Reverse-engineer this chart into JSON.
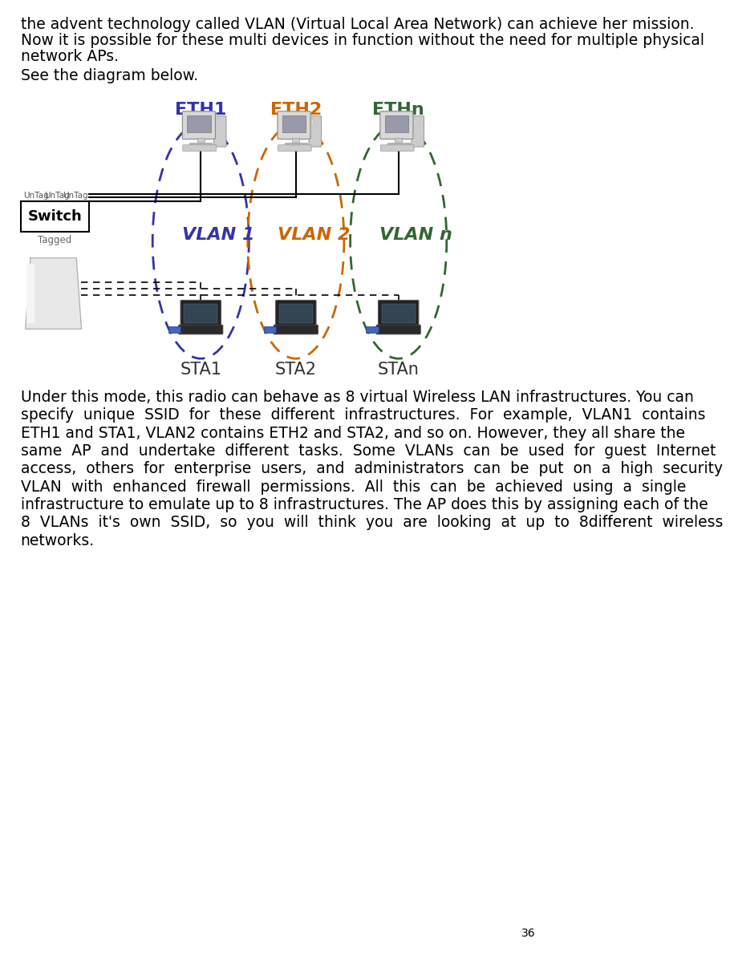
{
  "page_number": "36",
  "text_line1": "the advent technology called VLAN (Virtual Local Area Network) can achieve her mission.",
  "text_line2": "Now it is possible for these multi devices in function without the need for multiple physical",
  "text_line3": "network APs.",
  "text_line4": "See the diagram below.",
  "vlan1_color": "#3333AA",
  "vlan2_color": "#CC6600",
  "vlann_color": "#336633",
  "switch_label": "Switch",
  "tagged_label": "Tagged",
  "untag_labels": [
    "UnTag",
    "UnTag",
    "UnTag"
  ],
  "eth_labels": [
    "ETH1",
    "ETH2",
    "ETHn"
  ],
  "sta_labels": [
    "STA1",
    "STA2",
    "STAn"
  ],
  "vlan_labels": [
    "VLAN 1",
    "VLAN 2",
    "VLAN n"
  ],
  "background_color": "#ffffff",
  "text_color": "#000000",
  "font_size_body": 13.5,
  "font_size_diagram_label": 15,
  "font_size_vlan": 16,
  "para_lines": [
    "Under this mode, this radio can behave as 8 virtual Wireless LAN infrastructures. You can",
    "specify  unique  SSID  for  these  different  infrastructures.  For  example,  VLAN1  contains",
    "ETH1 and STA1, VLAN2 contains ETH2 and STA2, and so on. However, they all share the",
    "same  AP  and  undertake  different  tasks.  Some  VLANs  can  be  used  for  guest  Internet",
    "access,  others  for  enterprise  users,  and  administrators  can  be  put  on  a  high  security",
    "VLAN  with  enhanced  firewall  permissions.  All  this  can  be  achieved  using  a  single",
    "infrastructure to emulate up to 8 infrastructures. The AP does this by assigning each of the",
    "8  VLANs  it's  own  SSID,  so  you  will  think  you  are  looking  at  up  to  8different  wireless",
    "networks."
  ]
}
